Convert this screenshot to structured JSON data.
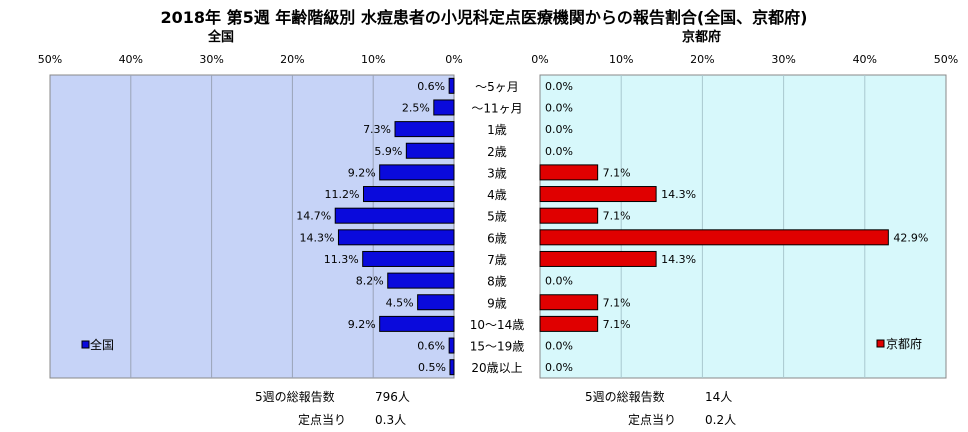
{
  "title": "2018年 第5週 年齢階級別 水痘患者の小児科定点医療機関からの報告割合(全国、京都府)",
  "left_label": "全国",
  "right_label": "京都府",
  "colors": {
    "national": "#0a0adc",
    "kyoto": "#e00000",
    "plot_bg": "#c6d3f7",
    "plot_bg_right": "#d7f8fb",
    "bar_edge": "#000000"
  },
  "chart_data": [
    {
      "type": "bar",
      "orientation": "horizontal",
      "direction": "leftward",
      "title": "全国",
      "categories": [
        "～5ヶ月",
        "～11ヶ月",
        "1歳",
        "2歳",
        "3歳",
        "4歳",
        "5歳",
        "6歳",
        "7歳",
        "8歳",
        "9歳",
        "10～14歳",
        "15～19歳",
        "20歳以上"
      ],
      "series": [
        {
          "name": "全国",
          "values": [
            0.6,
            2.5,
            7.3,
            5.9,
            9.2,
            11.2,
            14.7,
            14.3,
            11.3,
            8.2,
            4.5,
            9.2,
            0.6,
            0.5
          ]
        }
      ],
      "value_labels": [
        "0.6%",
        "2.5%",
        "7.3%",
        "5.9%",
        "9.2%",
        "11.2%",
        "14.7%",
        "14.3%",
        "11.3%",
        "8.2%",
        "4.5%",
        "9.2%",
        "0.6%",
        "0.5%"
      ],
      "ticks": [
        "50%",
        "40%",
        "30%",
        "20%",
        "10%",
        "0%"
      ],
      "xlim": [
        0,
        50
      ],
      "grid": true,
      "legend": "bottom-left"
    },
    {
      "type": "bar",
      "orientation": "horizontal",
      "direction": "rightward",
      "title": "京都府",
      "categories": [
        "～5ヶ月",
        "～11ヶ月",
        "1歳",
        "2歳",
        "3歳",
        "4歳",
        "5歳",
        "6歳",
        "7歳",
        "8歳",
        "9歳",
        "10～14歳",
        "15～19歳",
        "20歳以上"
      ],
      "series": [
        {
          "name": "京都府",
          "values": [
            0.0,
            0.0,
            0.0,
            0.0,
            7.1,
            14.3,
            7.1,
            42.9,
            14.3,
            0.0,
            7.1,
            7.1,
            0.0,
            0.0
          ]
        }
      ],
      "value_labels": [
        "0.0%",
        "0.0%",
        "0.0%",
        "0.0%",
        "7.1%",
        "14.3%",
        "7.1%",
        "42.9%",
        "14.3%",
        "0.0%",
        "7.1%",
        "7.1%",
        "0.0%",
        "0.0%"
      ],
      "ticks": [
        "0%",
        "10%",
        "20%",
        "30%",
        "40%",
        "50%"
      ],
      "xlim": [
        0,
        50
      ],
      "grid": true,
      "legend": "bottom-right"
    }
  ],
  "stats": {
    "national": {
      "total_label": "5週の総報告数",
      "total_value": "796人",
      "per_label": "定点当り",
      "per_value": "0.3人"
    },
    "kyoto": {
      "total_label": "5週の総報告数",
      "total_value": "14人",
      "per_label": "定点当り",
      "per_value": "0.2人"
    }
  }
}
